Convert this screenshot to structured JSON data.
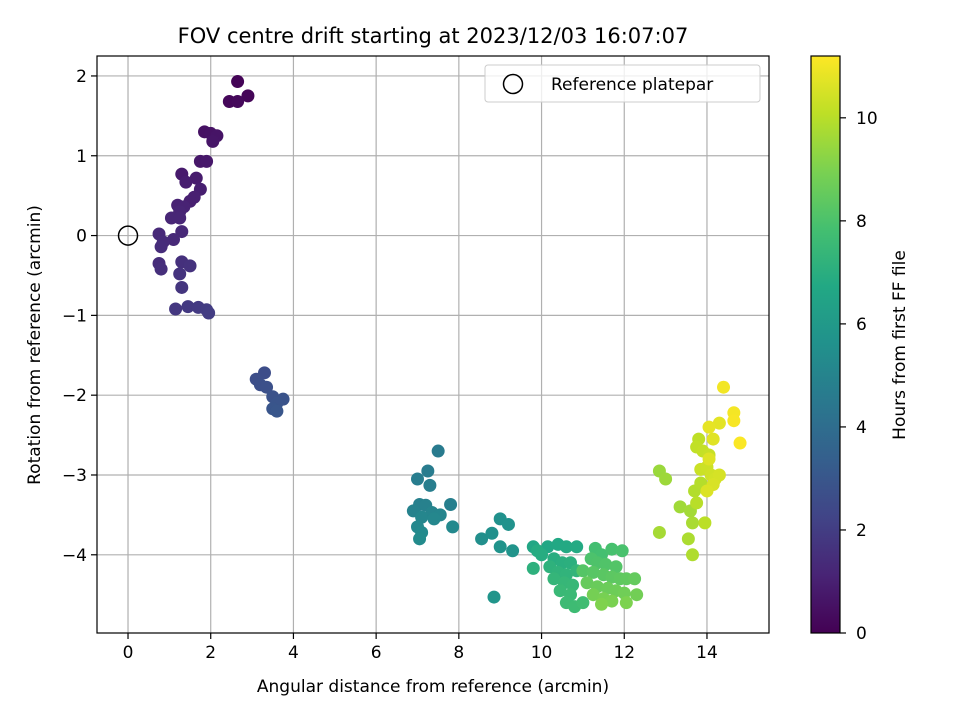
{
  "chart_data": {
    "type": "scatter",
    "title": "FOV centre drift starting at 2023/12/03 16:07:07",
    "xlabel": "Angular distance from reference (arcmin)",
    "ylabel": "Rotation from reference (arcmin)",
    "xlim": [
      -0.75,
      15.5
    ],
    "ylim": [
      -4.98,
      2.25
    ],
    "xticks": [
      0,
      2,
      4,
      6,
      8,
      10,
      12,
      14
    ],
    "yticks": [
      2,
      1,
      0,
      -1,
      -2,
      -3,
      -4
    ],
    "grid": true,
    "legend": {
      "placement": "top-right",
      "entries": [
        "Reference platepar"
      ]
    },
    "reference_point": {
      "x": 0,
      "y": 0
    },
    "colorbar": {
      "label": "Hours from first FF file",
      "range": [
        0,
        11.2
      ],
      "ticks": [
        0,
        2,
        4,
        6,
        8,
        10
      ],
      "colormap": "viridis"
    },
    "series": [
      {
        "points": [
          {
            "x": 2.65,
            "y": 1.93,
            "t": 0.1
          },
          {
            "x": 2.9,
            "y": 1.75,
            "t": 0.15
          },
          {
            "x": 2.45,
            "y": 1.68,
            "t": 0.2
          },
          {
            "x": 2.65,
            "y": 1.68,
            "t": 0.25
          },
          {
            "x": 1.85,
            "y": 1.3,
            "t": 0.5
          },
          {
            "x": 2.0,
            "y": 1.28,
            "t": 0.55
          },
          {
            "x": 2.15,
            "y": 1.25,
            "t": 0.6
          },
          {
            "x": 2.05,
            "y": 1.18,
            "t": 0.65
          },
          {
            "x": 1.75,
            "y": 0.93,
            "t": 0.7
          },
          {
            "x": 1.9,
            "y": 0.93,
            "t": 0.75
          },
          {
            "x": 1.3,
            "y": 0.77,
            "t": 0.8
          },
          {
            "x": 1.65,
            "y": 0.72,
            "t": 0.85
          },
          {
            "x": 1.4,
            "y": 0.67,
            "t": 0.9
          },
          {
            "x": 1.75,
            "y": 0.58,
            "t": 0.95
          },
          {
            "x": 1.6,
            "y": 0.48,
            "t": 1.0
          },
          {
            "x": 1.5,
            "y": 0.43,
            "t": 1.0
          },
          {
            "x": 1.2,
            "y": 0.38,
            "t": 1.05
          },
          {
            "x": 1.35,
            "y": 0.36,
            "t": 1.1
          },
          {
            "x": 1.25,
            "y": 0.3,
            "t": 1.15
          },
          {
            "x": 1.05,
            "y": 0.22,
            "t": 1.2
          },
          {
            "x": 1.25,
            "y": 0.22,
            "t": 1.2
          },
          {
            "x": 1.3,
            "y": 0.05,
            "t": 1.25
          },
          {
            "x": 0.75,
            "y": 0.02,
            "t": 1.3
          },
          {
            "x": 1.1,
            "y": -0.05,
            "t": 1.3
          },
          {
            "x": 0.85,
            "y": -0.08,
            "t": 1.35
          },
          {
            "x": 0.8,
            "y": -0.14,
            "t": 1.4
          },
          {
            "x": 0.75,
            "y": -0.35,
            "t": 1.45
          },
          {
            "x": 0.8,
            "y": -0.42,
            "t": 1.5
          },
          {
            "x": 1.3,
            "y": -0.33,
            "t": 1.55
          },
          {
            "x": 1.5,
            "y": -0.38,
            "t": 1.6
          },
          {
            "x": 1.25,
            "y": -0.48,
            "t": 1.65
          },
          {
            "x": 1.3,
            "y": -0.65,
            "t": 1.7
          },
          {
            "x": 1.15,
            "y": -0.92,
            "t": 1.8
          },
          {
            "x": 1.45,
            "y": -0.89,
            "t": 1.85
          },
          {
            "x": 1.7,
            "y": -0.9,
            "t": 1.9
          },
          {
            "x": 1.9,
            "y": -0.93,
            "t": 1.95
          },
          {
            "x": 1.95,
            "y": -0.97,
            "t": 2.0
          },
          {
            "x": 3.3,
            "y": -1.72,
            "t": 2.6
          },
          {
            "x": 3.1,
            "y": -1.8,
            "t": 2.65
          },
          {
            "x": 3.2,
            "y": -1.87,
            "t": 2.7
          },
          {
            "x": 3.35,
            "y": -1.9,
            "t": 2.75
          },
          {
            "x": 3.5,
            "y": -2.02,
            "t": 2.8
          },
          {
            "x": 3.75,
            "y": -2.05,
            "t": 2.85
          },
          {
            "x": 3.6,
            "y": -2.1,
            "t": 2.9
          },
          {
            "x": 3.5,
            "y": -2.17,
            "t": 2.95
          },
          {
            "x": 3.6,
            "y": -2.2,
            "t": 3.0
          },
          {
            "x": 7.5,
            "y": -2.7,
            "t": 4.6
          },
          {
            "x": 7.25,
            "y": -2.95,
            "t": 4.65
          },
          {
            "x": 7.0,
            "y": -3.05,
            "t": 4.7
          },
          {
            "x": 7.3,
            "y": -3.13,
            "t": 4.75
          },
          {
            "x": 7.8,
            "y": -3.37,
            "t": 4.8
          },
          {
            "x": 7.05,
            "y": -3.37,
            "t": 4.85
          },
          {
            "x": 7.2,
            "y": -3.38,
            "t": 4.9
          },
          {
            "x": 6.9,
            "y": -3.45,
            "t": 4.95
          },
          {
            "x": 7.35,
            "y": -3.47,
            "t": 5.0
          },
          {
            "x": 7.55,
            "y": -3.5,
            "t": 5.05
          },
          {
            "x": 7.1,
            "y": -3.53,
            "t": 5.1
          },
          {
            "x": 7.4,
            "y": -3.55,
            "t": 5.15
          },
          {
            "x": 7.0,
            "y": -3.65,
            "t": 5.2
          },
          {
            "x": 7.85,
            "y": -3.65,
            "t": 5.25
          },
          {
            "x": 7.1,
            "y": -3.72,
            "t": 5.3
          },
          {
            "x": 7.05,
            "y": -3.8,
            "t": 5.35
          },
          {
            "x": 8.55,
            "y": -3.8,
            "t": 5.5
          },
          {
            "x": 8.8,
            "y": -3.73,
            "t": 5.55
          },
          {
            "x": 9.0,
            "y": -3.55,
            "t": 5.6
          },
          {
            "x": 9.2,
            "y": -3.62,
            "t": 5.65
          },
          {
            "x": 9.0,
            "y": -3.9,
            "t": 5.7
          },
          {
            "x": 9.3,
            "y": -3.95,
            "t": 5.75
          },
          {
            "x": 8.85,
            "y": -4.53,
            "t": 5.8
          },
          {
            "x": 9.8,
            "y": -3.9,
            "t": 6.6
          },
          {
            "x": 10.15,
            "y": -3.9,
            "t": 6.65
          },
          {
            "x": 10.4,
            "y": -3.87,
            "t": 6.7
          },
          {
            "x": 10.6,
            "y": -3.9,
            "t": 6.75
          },
          {
            "x": 10.85,
            "y": -3.9,
            "t": 6.8
          },
          {
            "x": 9.9,
            "y": -3.95,
            "t": 6.85
          },
          {
            "x": 10.0,
            "y": -4.0,
            "t": 6.9
          },
          {
            "x": 10.3,
            "y": -4.05,
            "t": 6.95
          },
          {
            "x": 10.5,
            "y": -4.1,
            "t": 7.0
          },
          {
            "x": 10.7,
            "y": -4.1,
            "t": 7.05
          },
          {
            "x": 9.8,
            "y": -4.17,
            "t": 7.1
          },
          {
            "x": 10.2,
            "y": -4.15,
            "t": 7.15
          },
          {
            "x": 10.4,
            "y": -4.22,
            "t": 7.2
          },
          {
            "x": 10.6,
            "y": -4.25,
            "t": 7.25
          },
          {
            "x": 10.85,
            "y": -4.2,
            "t": 7.3
          },
          {
            "x": 10.3,
            "y": -4.3,
            "t": 7.35
          },
          {
            "x": 10.55,
            "y": -4.35,
            "t": 7.4
          },
          {
            "x": 10.75,
            "y": -4.38,
            "t": 7.45
          },
          {
            "x": 10.45,
            "y": -4.45,
            "t": 7.5
          },
          {
            "x": 10.7,
            "y": -4.5,
            "t": 7.55
          },
          {
            "x": 10.6,
            "y": -4.6,
            "t": 7.6
          },
          {
            "x": 10.8,
            "y": -4.65,
            "t": 7.65
          },
          {
            "x": 11.0,
            "y": -4.6,
            "t": 7.7
          },
          {
            "x": 11.3,
            "y": -3.92,
            "t": 7.8
          },
          {
            "x": 11.45,
            "y": -4.0,
            "t": 7.85
          },
          {
            "x": 11.7,
            "y": -3.93,
            "t": 7.9
          },
          {
            "x": 11.95,
            "y": -3.95,
            "t": 7.95
          },
          {
            "x": 11.2,
            "y": -4.05,
            "t": 8.0
          },
          {
            "x": 11.35,
            "y": -4.1,
            "t": 8.05
          },
          {
            "x": 11.55,
            "y": -4.12,
            "t": 8.1
          },
          {
            "x": 11.8,
            "y": -4.15,
            "t": 8.15
          },
          {
            "x": 11.0,
            "y": -4.2,
            "t": 8.2
          },
          {
            "x": 11.25,
            "y": -4.22,
            "t": 8.25
          },
          {
            "x": 11.5,
            "y": -4.25,
            "t": 8.3
          },
          {
            "x": 11.7,
            "y": -4.28,
            "t": 8.35
          },
          {
            "x": 11.9,
            "y": -4.3,
            "t": 8.4
          },
          {
            "x": 12.05,
            "y": -4.3,
            "t": 8.45
          },
          {
            "x": 12.25,
            "y": -4.3,
            "t": 8.5
          },
          {
            "x": 11.1,
            "y": -4.35,
            "t": 8.55
          },
          {
            "x": 11.35,
            "y": -4.4,
            "t": 8.6
          },
          {
            "x": 11.6,
            "y": -4.42,
            "t": 8.65
          },
          {
            "x": 11.8,
            "y": -4.45,
            "t": 8.7
          },
          {
            "x": 12.0,
            "y": -4.48,
            "t": 8.75
          },
          {
            "x": 12.3,
            "y": -4.5,
            "t": 8.8
          },
          {
            "x": 11.25,
            "y": -4.5,
            "t": 8.85
          },
          {
            "x": 11.5,
            "y": -4.55,
            "t": 8.9
          },
          {
            "x": 11.7,
            "y": -4.58,
            "t": 8.95
          },
          {
            "x": 12.05,
            "y": -4.6,
            "t": 9.0
          },
          {
            "x": 11.45,
            "y": -4.62,
            "t": 9.05
          },
          {
            "x": 12.85,
            "y": -2.95,
            "t": 9.5
          },
          {
            "x": 13.0,
            "y": -3.05,
            "t": 9.55
          },
          {
            "x": 13.35,
            "y": -3.4,
            "t": 9.6
          },
          {
            "x": 13.6,
            "y": -3.45,
            "t": 9.65
          },
          {
            "x": 12.85,
            "y": -3.72,
            "t": 9.7
          },
          {
            "x": 13.65,
            "y": -3.6,
            "t": 9.75
          },
          {
            "x": 13.55,
            "y": -3.8,
            "t": 9.8
          },
          {
            "x": 13.65,
            "y": -4.0,
            "t": 9.85
          },
          {
            "x": 13.7,
            "y": -3.2,
            "t": 9.9
          },
          {
            "x": 13.85,
            "y": -3.1,
            "t": 9.95
          },
          {
            "x": 13.75,
            "y": -3.35,
            "t": 10.0
          },
          {
            "x": 13.95,
            "y": -3.6,
            "t": 10.05
          },
          {
            "x": 13.8,
            "y": -2.55,
            "t": 10.1
          },
          {
            "x": 13.75,
            "y": -2.65,
            "t": 10.15
          },
          {
            "x": 13.9,
            "y": -2.7,
            "t": 10.2
          },
          {
            "x": 14.05,
            "y": -2.75,
            "t": 10.25
          },
          {
            "x": 13.85,
            "y": -2.93,
            "t": 10.3
          },
          {
            "x": 14.0,
            "y": -2.9,
            "t": 10.35
          },
          {
            "x": 14.1,
            "y": -3.0,
            "t": 10.4
          },
          {
            "x": 14.2,
            "y": -3.05,
            "t": 10.45
          },
          {
            "x": 14.3,
            "y": -3.0,
            "t": 10.5
          },
          {
            "x": 14.15,
            "y": -3.12,
            "t": 10.55
          },
          {
            "x": 14.0,
            "y": -3.2,
            "t": 10.6
          },
          {
            "x": 14.05,
            "y": -2.8,
            "t": 10.65
          },
          {
            "x": 14.15,
            "y": -2.55,
            "t": 10.7
          },
          {
            "x": 14.3,
            "y": -2.35,
            "t": 10.75
          },
          {
            "x": 14.05,
            "y": -2.4,
            "t": 10.8
          },
          {
            "x": 14.4,
            "y": -1.9,
            "t": 11.0
          },
          {
            "x": 14.65,
            "y": -2.22,
            "t": 11.05
          },
          {
            "x": 14.65,
            "y": -2.32,
            "t": 11.1
          },
          {
            "x": 14.8,
            "y": -2.6,
            "t": 11.15
          }
        ]
      }
    ]
  }
}
